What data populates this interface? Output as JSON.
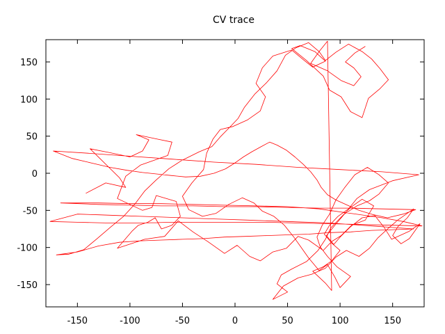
{
  "chart_data": {
    "type": "line",
    "title": "CV trace",
    "xlabel": "",
    "ylabel": "",
    "xlim": [
      -180,
      180
    ],
    "ylim": [
      -180,
      180
    ],
    "xticks": [
      -150,
      -100,
      -50,
      0,
      50,
      100,
      150
    ],
    "yticks": [
      -150,
      -100,
      -50,
      0,
      50,
      100,
      150
    ],
    "grid": false,
    "color": "#ff0000",
    "series": [
      {
        "values": [
          [
            -142,
            -27
          ],
          [
            -123,
            -13
          ],
          [
            -104,
            -19
          ],
          [
            -110,
            -6
          ],
          [
            -138,
            33
          ],
          [
            -120,
            28
          ],
          [
            -100,
            22
          ],
          [
            -88,
            30
          ],
          [
            -82,
            45
          ],
          [
            -94,
            52
          ],
          [
            -74,
            46
          ],
          [
            -60,
            42
          ],
          [
            -64,
            24
          ],
          [
            -90,
            11
          ],
          [
            -104,
            -4
          ],
          [
            -112,
            -34
          ],
          [
            -88,
            -50
          ],
          [
            -79,
            -46
          ],
          [
            -75,
            -30
          ],
          [
            -56,
            -38
          ],
          [
            -52,
            -58
          ],
          [
            -60,
            -70
          ],
          [
            -70,
            -75
          ],
          [
            -76,
            -60
          ],
          [
            -83,
            -66
          ],
          [
            -92,
            -70
          ],
          [
            -98,
            -78
          ],
          [
            -112,
            -101
          ],
          [
            -86,
            -89
          ],
          [
            -67,
            -85
          ],
          [
            -54,
            -64
          ],
          [
            -40,
            -79
          ],
          [
            -26,
            -92
          ],
          [
            -10,
            -108
          ],
          [
            2,
            -97
          ],
          [
            14,
            -112
          ],
          [
            24,
            -118
          ],
          [
            36,
            -106
          ],
          [
            49,
            -101
          ],
          [
            60,
            -85
          ],
          [
            70,
            -90
          ],
          [
            84,
            -104
          ],
          [
            92,
            -92
          ],
          [
            101,
            -84
          ],
          [
            111,
            -70
          ],
          [
            124,
            -63
          ],
          [
            132,
            -44
          ],
          [
            121,
            -35
          ],
          [
            110,
            -46
          ],
          [
            99,
            -62
          ],
          [
            91,
            -74
          ],
          [
            86,
            -89
          ],
          [
            79,
            -104
          ],
          [
            68,
            -119
          ],
          [
            54,
            -129
          ],
          [
            44,
            -137
          ],
          [
            40,
            -149
          ],
          [
            50,
            -160
          ],
          [
            36,
            -170
          ],
          [
            46,
            -152
          ],
          [
            60,
            -141
          ],
          [
            73,
            -136
          ],
          [
            86,
            -128
          ],
          [
            96,
            -113
          ],
          [
            106,
            -104
          ],
          [
            118,
            -112
          ],
          [
            128,
            -101
          ],
          [
            136,
            -87
          ],
          [
            146,
            -74
          ],
          [
            155,
            -63
          ],
          [
            164,
            -54
          ],
          [
            170,
            -48
          ],
          [
            164,
            -60
          ],
          [
            155,
            -72
          ],
          [
            150,
            -84
          ],
          [
            158,
            -95
          ],
          [
            166,
            -88
          ],
          [
            172,
            -76
          ],
          [
            176,
            -68
          ],
          [
            166,
            -78
          ],
          [
            149,
            -89
          ],
          [
            142,
            -73
          ],
          [
            133,
            -57
          ],
          [
            121,
            -60
          ],
          [
            110,
            -72
          ],
          [
            100,
            -86
          ],
          [
            94,
            -96
          ],
          [
            87,
            -84
          ],
          [
            95,
            -70
          ],
          [
            104,
            -55
          ],
          [
            116,
            -44
          ],
          [
            128,
            -37
          ],
          [
            137,
            -28
          ],
          [
            146,
            -13
          ],
          [
            137,
            -2
          ],
          [
            126,
            8
          ],
          [
            114,
            -2
          ],
          [
            104,
            -20
          ],
          [
            96,
            -36
          ],
          [
            90,
            -55
          ],
          [
            83,
            -70
          ],
          [
            78,
            -86
          ],
          [
            81,
            -99
          ],
          [
            88,
            -112
          ],
          [
            97,
            -126
          ],
          [
            104,
            -133
          ],
          [
            110,
            -139
          ],
          [
            100,
            -154
          ],
          [
            95,
            -140
          ],
          [
            88,
            -123
          ],
          [
            80,
            -131
          ],
          [
            70,
            -114
          ],
          [
            62,
            -98
          ],
          [
            56,
            -86
          ],
          [
            47,
            -70
          ],
          [
            37,
            -58
          ],
          [
            26,
            -51
          ],
          [
            18,
            -40
          ],
          [
            7,
            -33
          ],
          [
            -6,
            -42
          ],
          [
            -18,
            -54
          ],
          [
            -31,
            -58
          ],
          [
            -44,
            -49
          ],
          [
            -50,
            -31
          ],
          [
            -41,
            -13
          ],
          [
            -30,
            5
          ],
          [
            -27,
            27
          ],
          [
            -21,
            46
          ],
          [
            -14,
            59
          ],
          [
            -2,
            63
          ],
          [
            12,
            72
          ],
          [
            24,
            84
          ],
          [
            29,
            103
          ],
          [
            20,
            121
          ],
          [
            26,
            142
          ],
          [
            36,
            158
          ],
          [
            54,
            166
          ],
          [
            66,
            152
          ],
          [
            74,
            143
          ],
          [
            86,
            151
          ],
          [
            76,
            164
          ],
          [
            62,
            172
          ],
          [
            54,
            168
          ],
          [
            68,
            152
          ],
          [
            84,
            131
          ],
          [
            90,
            112
          ],
          [
            101,
            103
          ],
          [
            110,
            83
          ],
          [
            121,
            75
          ],
          [
            127,
            101
          ],
          [
            138,
            114
          ],
          [
            146,
            126
          ],
          [
            138,
            141
          ],
          [
            130,
            154
          ],
          [
            121,
            164
          ],
          [
            108,
            174
          ],
          [
            96,
            163
          ],
          [
            86,
            152
          ],
          [
            80,
            164
          ],
          [
            70,
            176
          ],
          [
            58,
            169
          ],
          [
            48,
            159
          ],
          [
            40,
            138
          ],
          [
            30,
            122
          ],
          [
            19,
            107
          ],
          [
            9,
            89
          ],
          [
            3,
            74
          ],
          [
            -5,
            62
          ],
          [
            -14,
            49
          ],
          [
            -22,
            36
          ],
          [
            -34,
            29
          ],
          [
            -51,
            17
          ],
          [
            -63,
            6
          ],
          [
            -75,
            -9
          ],
          [
            -86,
            -24
          ],
          [
            -95,
            -41
          ],
          [
            -106,
            -58
          ],
          [
            -118,
            -72
          ],
          [
            -132,
            -89
          ],
          [
            -144,
            -103
          ],
          [
            -158,
            -109
          ],
          [
            -170,
            -110
          ],
          [
            -150,
            -106
          ],
          [
            -130,
            -98
          ],
          [
            -110,
            -93
          ],
          [
            -90,
            -91
          ],
          [
            -70,
            -90
          ],
          [
            -50,
            -89
          ],
          [
            -30,
            -88
          ],
          [
            -10,
            -86
          ],
          [
            10,
            -85
          ],
          [
            30,
            -84
          ],
          [
            50,
            -83
          ],
          [
            70,
            -82
          ],
          [
            90,
            -80
          ],
          [
            110,
            -79
          ],
          [
            130,
            -77
          ],
          [
            150,
            -76
          ],
          [
            170,
            -75
          ],
          [
            150,
            -73
          ],
          [
            130,
            -71
          ],
          [
            110,
            -69
          ],
          [
            90,
            -67
          ],
          [
            70,
            -66
          ],
          [
            50,
            -65
          ],
          [
            30,
            -64
          ],
          [
            10,
            -63
          ],
          [
            -10,
            -62
          ],
          [
            -30,
            -61
          ],
          [
            -50,
            -60
          ],
          [
            -70,
            -59
          ],
          [
            -90,
            -58
          ],
          [
            -110,
            -57
          ],
          [
            -130,
            -56
          ],
          [
            -150,
            -55
          ],
          [
            -176,
            -65
          ],
          [
            -150,
            -66
          ],
          [
            -120,
            -67
          ],
          [
            -90,
            -67
          ],
          [
            -60,
            -66
          ],
          [
            -30,
            -66
          ],
          [
            0,
            -66
          ],
          [
            30,
            -66
          ],
          [
            60,
            -67
          ],
          [
            90,
            -68
          ],
          [
            120,
            -69
          ],
          [
            150,
            -70
          ],
          [
            178,
            -71
          ],
          [
            160,
            -65
          ],
          [
            140,
            -60
          ],
          [
            110,
            -54
          ],
          [
            80,
            -48
          ],
          [
            50,
            -45
          ],
          [
            20,
            -44
          ],
          [
            -10,
            -43
          ],
          [
            -40,
            -42
          ],
          [
            -70,
            -41
          ],
          [
            -100,
            -41
          ],
          [
            -130,
            -40
          ],
          [
            -166,
            -40
          ],
          [
            -130,
            -42
          ],
          [
            -100,
            -43
          ],
          [
            -70,
            -44
          ],
          [
            -40,
            -44
          ],
          [
            -10,
            -45
          ],
          [
            20,
            -45
          ],
          [
            50,
            -46
          ],
          [
            80,
            -47
          ],
          [
            110,
            -47
          ],
          [
            140,
            -48
          ],
          [
            172,
            -49
          ],
          [
            160,
            -55
          ],
          [
            145,
            -60
          ],
          [
            132,
            -56
          ],
          [
            118,
            -50
          ],
          [
            107,
            -43
          ],
          [
            96,
            -36
          ],
          [
            88,
            -29
          ],
          [
            82,
            -19
          ],
          [
            78,
            -9
          ],
          [
            72,
            2
          ],
          [
            65,
            12
          ],
          [
            57,
            22
          ],
          [
            49,
            31
          ],
          [
            40,
            38
          ],
          [
            33,
            42
          ],
          [
            25,
            36
          ],
          [
            16,
            29
          ],
          [
            8,
            22
          ],
          [
            0,
            14
          ],
          [
            -9,
            6
          ],
          [
            -20,
            0
          ],
          [
            -33,
            -4
          ],
          [
            -47,
            -5
          ],
          [
            -61,
            -3
          ],
          [
            -74,
            -1
          ],
          [
            -88,
            1
          ],
          [
            -103,
            4
          ],
          [
            -119,
            8
          ],
          [
            -137,
            14
          ],
          [
            -155,
            20
          ],
          [
            -173,
            30
          ],
          [
            -140,
            27
          ],
          [
            -100,
            23
          ],
          [
            -60,
            19
          ],
          [
            -20,
            15
          ],
          [
            20,
            12
          ],
          [
            60,
            8
          ],
          [
            100,
            5
          ],
          [
            140,
            2
          ],
          [
            175,
            -2
          ],
          [
            150,
            -10
          ],
          [
            128,
            -22
          ],
          [
            116,
            -34
          ],
          [
            108,
            -48
          ],
          [
            98,
            -58
          ],
          [
            90,
            -70
          ],
          [
            85,
            -82
          ],
          [
            92,
            -94
          ],
          [
            100,
            -104
          ],
          [
            92,
            -118
          ],
          [
            84,
            -126
          ],
          [
            74,
            -132
          ],
          [
            86,
            -148
          ],
          [
            92,
            -158
          ],
          [
            88,
            178
          ],
          [
            80,
            164
          ],
          [
            72,
            148
          ],
          [
            88,
            138
          ],
          [
            101,
            125
          ],
          [
            113,
            118
          ],
          [
            120,
            130
          ],
          [
            113,
            142
          ],
          [
            105,
            150
          ],
          [
            114,
            162
          ],
          [
            124,
            171
          ]
        ]
      }
    ]
  }
}
